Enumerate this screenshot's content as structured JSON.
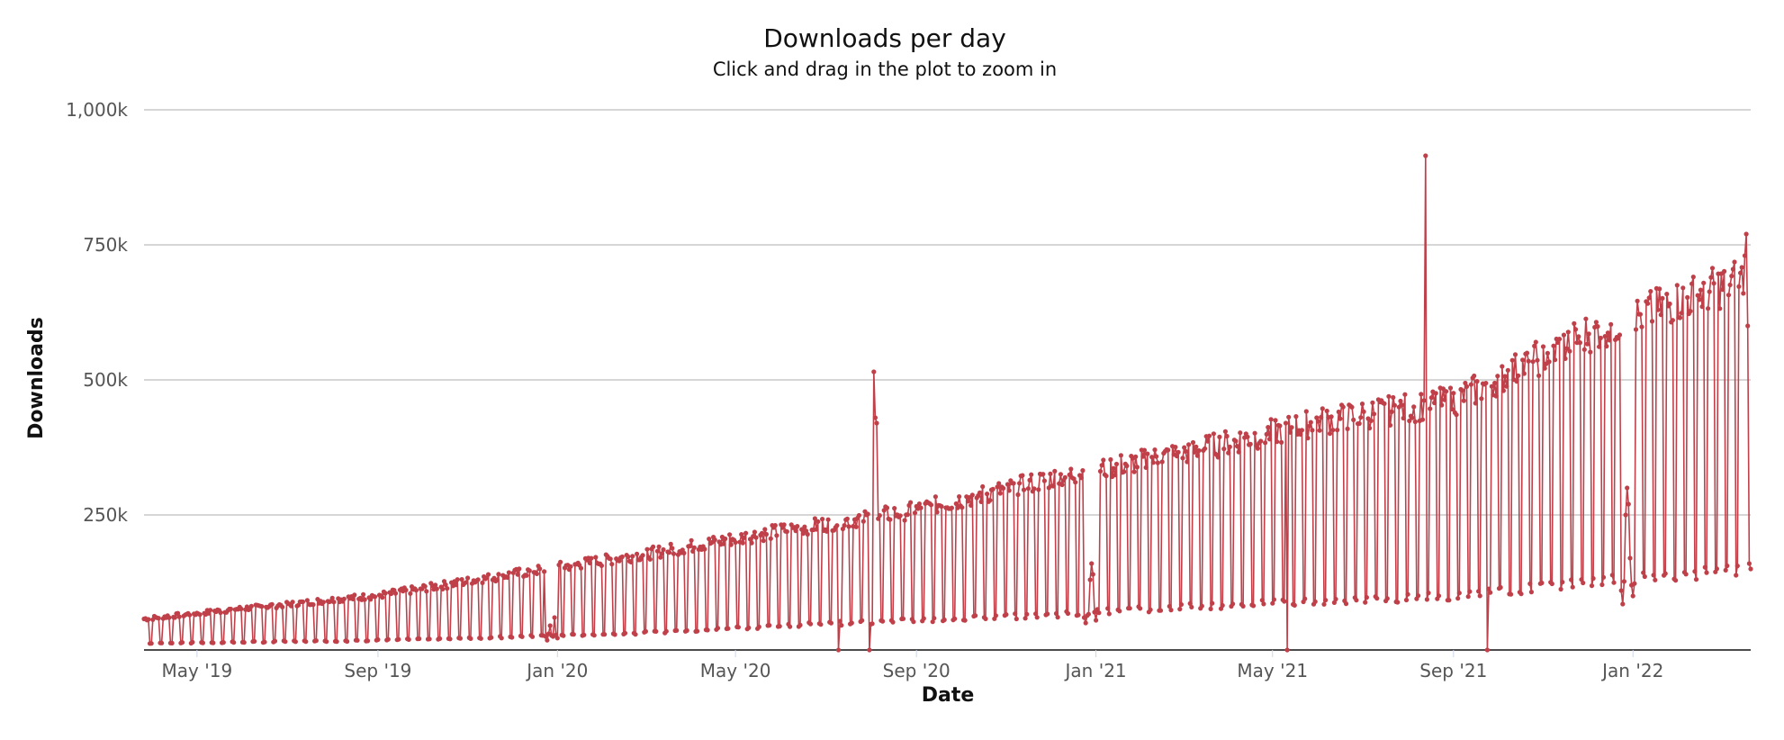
{
  "chart_data": {
    "type": "line",
    "title": "Downloads per day",
    "subtitle": "Click and drag in the plot to zoom in",
    "xlabel": "Date",
    "ylabel": "Downloads",
    "x_range": [
      "2019-03-26",
      "2022-03-22"
    ],
    "ylim": [
      0,
      1000000
    ],
    "y_ticks": [
      250000,
      500000,
      750000,
      1000000
    ],
    "y_tick_labels": [
      "250k",
      "500k",
      "750k",
      "1,000k"
    ],
    "x_ticks": [
      "2019-05-01",
      "2019-09-01",
      "2020-01-01",
      "2020-05-01",
      "2020-09-01",
      "2021-01-01",
      "2021-05-01",
      "2021-09-01",
      "2022-01-01"
    ],
    "x_tick_labels": [
      "May '19",
      "Sep '19",
      "Jan '20",
      "May '20",
      "Sep '20",
      "Jan '21",
      "May '21",
      "Sep '21",
      "Jan '22"
    ],
    "grid": true,
    "legend": "none",
    "series_color": "#c0404a",
    "series": [
      {
        "weekday_trend": [
          [
            "2019-03-26",
            60000
          ],
          [
            "2019-06-01",
            80000
          ],
          [
            "2019-09-01",
            105000
          ],
          [
            "2019-12-10",
            150000
          ],
          [
            "2020-03-01",
            185000
          ],
          [
            "2020-06-01",
            230000
          ],
          [
            "2020-09-01",
            270000
          ],
          [
            "2020-12-01",
            330000
          ],
          [
            "2021-03-01",
            380000
          ],
          [
            "2021-06-01",
            440000
          ],
          [
            "2021-09-01",
            480000
          ],
          [
            "2021-12-01",
            610000
          ],
          [
            "2022-03-20",
            720000
          ]
        ],
        "weekend_trend": [
          [
            "2019-03-26",
            12000
          ],
          [
            "2019-09-01",
            18000
          ],
          [
            "2019-12-10",
            25000
          ],
          [
            "2020-03-01",
            32000
          ],
          [
            "2020-06-01",
            45000
          ],
          [
            "2020-09-01",
            55000
          ],
          [
            "2020-12-01",
            65000
          ],
          [
            "2021-03-01",
            80000
          ],
          [
            "2021-06-01",
            90000
          ],
          [
            "2021-09-01",
            100000
          ],
          [
            "2021-12-01",
            125000
          ],
          [
            "2022-03-20",
            150000
          ]
        ],
        "holiday_lows": [
          [
            "2019-12-24",
            25000
          ],
          [
            "2019-12-25",
            18000
          ],
          [
            "2019-12-26",
            30000
          ],
          [
            "2019-12-27",
            45000
          ],
          [
            "2019-12-30",
            60000
          ],
          [
            "2019-12-31",
            28000
          ],
          [
            "2020-01-01",
            22000
          ],
          [
            "2020-12-24",
            60000
          ],
          [
            "2020-12-25",
            50000
          ],
          [
            "2020-12-28",
            130000
          ],
          [
            "2020-12-29",
            160000
          ],
          [
            "2020-12-30",
            140000
          ],
          [
            "2020-12-31",
            70000
          ],
          [
            "2021-01-01",
            55000
          ],
          [
            "2021-12-24",
            110000
          ],
          [
            "2021-12-25",
            85000
          ],
          [
            "2021-12-27",
            250000
          ],
          [
            "2021-12-28",
            300000
          ],
          [
            "2021-12-29",
            270000
          ],
          [
            "2021-12-30",
            170000
          ],
          [
            "2021-12-31",
            120000
          ],
          [
            "2022-01-01",
            100000
          ]
        ],
        "spikes": [
          [
            "2020-08-03",
            515000
          ],
          [
            "2020-08-04",
            430000
          ],
          [
            "2020-08-05",
            420000
          ],
          [
            "2021-08-13",
            915000
          ]
        ],
        "zero_days": [
          "2020-07-10",
          "2020-07-31",
          "2021-05-11",
          "2021-09-24"
        ],
        "last_points": [
          [
            "2022-03-18",
            730000
          ],
          [
            "2022-03-19",
            770000
          ],
          [
            "2022-03-20",
            600000
          ],
          [
            "2022-03-21",
            160000
          ],
          [
            "2022-03-22",
            150000
          ]
        ]
      }
    ]
  }
}
